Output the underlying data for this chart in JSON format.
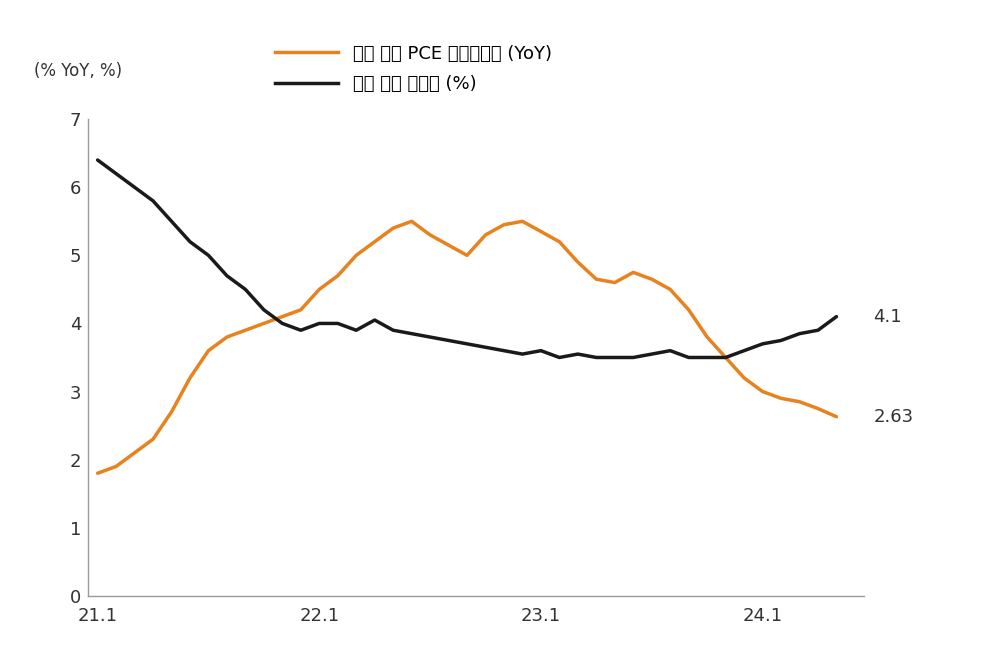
{
  "title_ylabel": "(% YoY, %)",
  "legend_pce": "미국 근원 PCE 물가상승률 (YoY)",
  "legend_unemployment": "미국 전체 실업률 (%)",
  "pce_color": "#E8821E",
  "unemployment_color": "#1A1A1A",
  "line_width": 2.5,
  "ylim": [
    0,
    7
  ],
  "yticks": [
    0,
    1,
    2,
    3,
    4,
    5,
    6,
    7
  ],
  "xticks": [
    0,
    12,
    24,
    36
  ],
  "xticklabels": [
    "21.1",
    "22.1",
    "23.1",
    "24.1"
  ],
  "end_label_pce": "2.63",
  "end_label_unemployment": "4.1",
  "background_color": "#FFFFFF",
  "pce_data": [
    1.8,
    1.9,
    2.1,
    2.3,
    2.7,
    3.2,
    3.6,
    3.8,
    3.9,
    4.0,
    4.1,
    4.2,
    4.5,
    4.7,
    5.0,
    5.2,
    5.4,
    5.5,
    5.3,
    5.15,
    5.0,
    5.3,
    5.45,
    5.5,
    5.35,
    5.2,
    4.9,
    4.65,
    4.6,
    4.75,
    4.65,
    4.5,
    4.2,
    3.8,
    3.5,
    3.2,
    3.0,
    2.9,
    2.85,
    2.75,
    2.63
  ],
  "unemployment_data": [
    6.4,
    6.2,
    6.0,
    5.8,
    5.5,
    5.2,
    5.0,
    4.7,
    4.5,
    4.2,
    4.0,
    3.9,
    4.0,
    4.0,
    3.9,
    4.05,
    3.9,
    3.85,
    3.8,
    3.75,
    3.7,
    3.65,
    3.6,
    3.55,
    3.6,
    3.5,
    3.55,
    3.5,
    3.5,
    3.5,
    3.55,
    3.6,
    3.5,
    3.5,
    3.5,
    3.6,
    3.7,
    3.75,
    3.85,
    3.9,
    4.1
  ]
}
